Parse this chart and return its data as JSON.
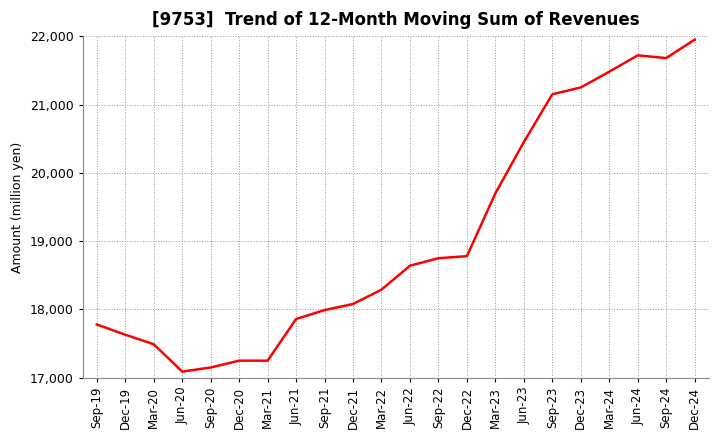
{
  "title": "[9753]  Trend of 12-Month Moving Sum of Revenues",
  "ylabel": "Amount (million yen)",
  "line_color": "#FF0000",
  "line_width": 1.8,
  "background_color": "#FFFFFF",
  "grid_color": "#999999",
  "ylim": [
    17000,
    22000
  ],
  "yticks": [
    17000,
    18000,
    19000,
    20000,
    21000,
    22000
  ],
  "x_labels": [
    "Sep-19",
    "Dec-19",
    "Mar-20",
    "Jun-20",
    "Sep-20",
    "Dec-20",
    "Mar-21",
    "Jun-21",
    "Sep-21",
    "Dec-21",
    "Mar-22",
    "Jun-22",
    "Sep-22",
    "Dec-22",
    "Mar-23",
    "Jun-23",
    "Sep-23",
    "Dec-23",
    "Mar-24",
    "Jun-24",
    "Sep-24",
    "Dec-24"
  ],
  "values": [
    17780,
    17630,
    17490,
    17090,
    17150,
    17250,
    17250,
    17860,
    17990,
    18080,
    18290,
    18640,
    18750,
    18780,
    19700,
    20450,
    21150,
    21250,
    21480,
    21720,
    21680,
    21950
  ]
}
